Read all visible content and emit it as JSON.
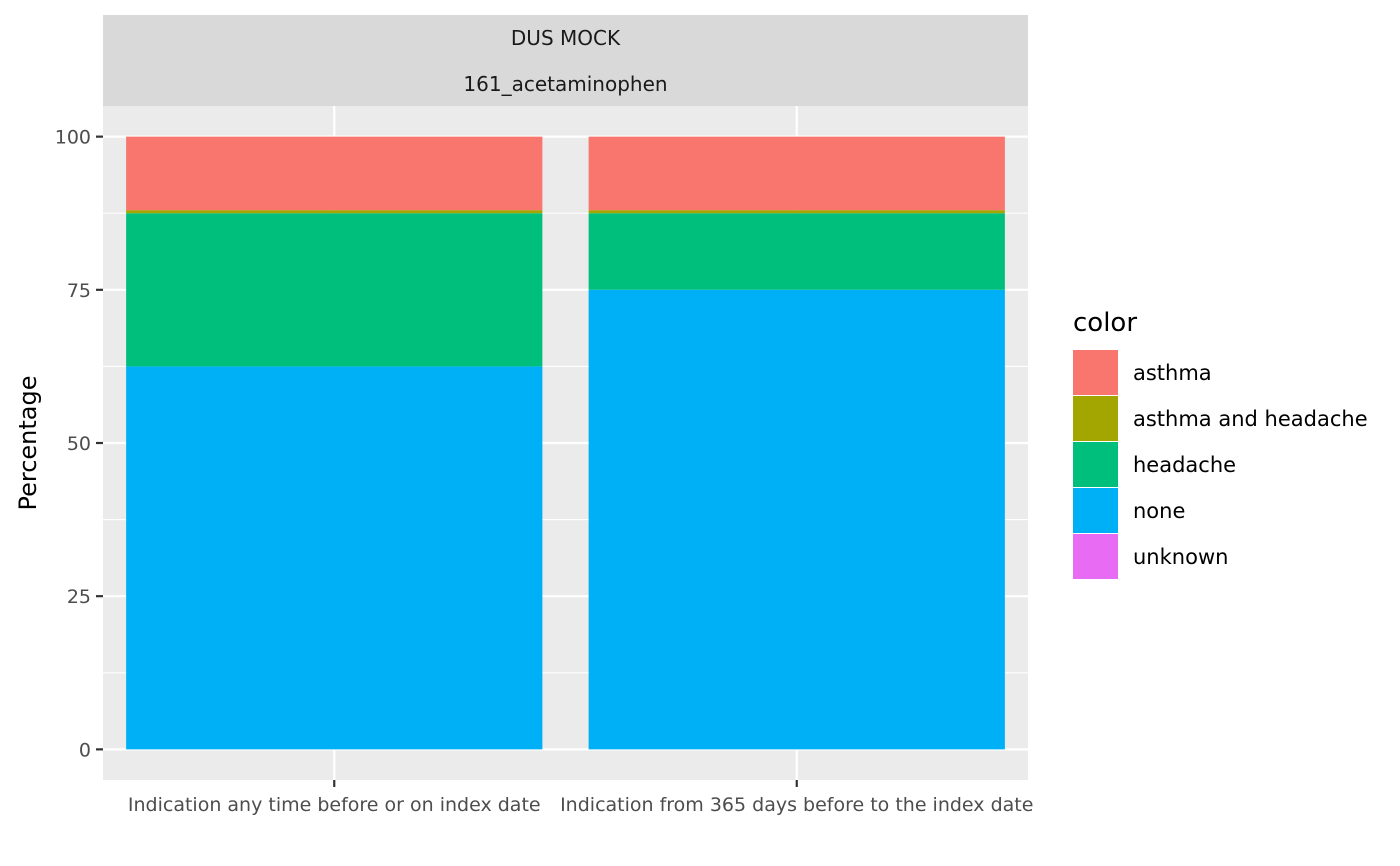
{
  "chart_data": {
    "type": "bar",
    "stacked": true,
    "facet_strips": [
      "DUS MOCK",
      "161_acetaminophen"
    ],
    "categories": [
      "Indication any time before or on index date",
      "Indication from 365 days before to the index date"
    ],
    "series": [
      {
        "name": "none",
        "color": "#00B0F6",
        "values": [
          62.5,
          75.0
        ]
      },
      {
        "name": "headache",
        "color": "#00BF7D",
        "values": [
          25.0,
          12.5
        ]
      },
      {
        "name": "asthma and headache",
        "color": "#A3A500",
        "values": [
          0.5,
          0.5
        ]
      },
      {
        "name": "asthma",
        "color": "#F8766D",
        "values": [
          12.0,
          12.0
        ]
      },
      {
        "name": "unknown",
        "color": "#E76BF3",
        "values": [
          0,
          0
        ]
      }
    ],
    "ylabel": "Percentage",
    "xlabel": "",
    "ylim": [
      -5,
      105
    ],
    "yticks": [
      0,
      25,
      50,
      75,
      100
    ],
    "legend": {
      "title": "color",
      "position": "right",
      "order": [
        "asthma",
        "asthma and headache",
        "headache",
        "none",
        "unknown"
      ]
    },
    "grid": true
  }
}
